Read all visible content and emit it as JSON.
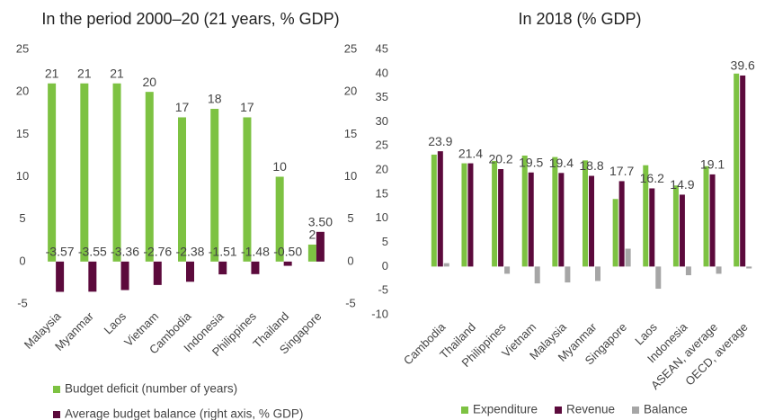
{
  "chart_data": [
    {
      "type": "bar",
      "title": "In the period 2000–20 (21 years, % GDP)",
      "categories": [
        "Malaysia",
        "Myanmar",
        "Laos",
        "Vietnam",
        "Cambodia",
        "Indonesia",
        "Philippines",
        "Thailand",
        "Singapore"
      ],
      "series": [
        {
          "name": "Budget deficit (number of years)",
          "color": "#7dc242",
          "values": [
            21,
            21,
            21,
            20,
            17,
            18,
            17,
            10,
            2
          ]
        },
        {
          "name": "Average budget balance (right axis, % GDP)",
          "color": "#5c0a3c",
          "axis": "y2",
          "values": [
            -3.57,
            -3.55,
            -3.36,
            -2.76,
            -2.38,
            -1.51,
            -1.48,
            -0.5,
            3.5
          ],
          "value_labels": [
            "-3.57",
            "-3.55",
            "-3.36",
            "-2.76",
            "-2.38",
            "-1.51",
            "-1.48",
            "-0.50",
            "3.50"
          ]
        }
      ],
      "ylim": [
        -5,
        25
      ],
      "yticks": [
        -5,
        0,
        5,
        10,
        15,
        20,
        25
      ],
      "y2lim": [
        -5,
        25
      ],
      "y2ticks": [
        -5,
        0,
        5,
        10,
        15,
        20,
        25
      ],
      "legend": "bottom-vertical"
    },
    {
      "type": "bar",
      "title": "In 2018 (% GDP)",
      "categories": [
        "Cambodia",
        "Thailand",
        "Philippines",
        "Vietnam",
        "Malaysia",
        "Myanmar",
        "Singapore",
        "Laos",
        "Indonesia",
        "ASEAN, average",
        "OECD, average"
      ],
      "series": [
        {
          "name": "Expenditure",
          "color": "#7dc242",
          "values": [
            23.2,
            21.4,
            21.9,
            23,
            22.7,
            22,
            14,
            21,
            16.8,
            20.8,
            40
          ]
        },
        {
          "name": "Revenue",
          "color": "#5c0a3c",
          "values": [
            23.9,
            21.4,
            20.2,
            19.5,
            19.4,
            18.8,
            17.7,
            16.2,
            14.9,
            19.1,
            39.6
          ],
          "labeled": true
        },
        {
          "name": "Balance",
          "color": "#a6a6a6",
          "values": [
            0.7,
            0,
            -1.5,
            -3.5,
            -3.3,
            -3,
            3.7,
            -4.6,
            -1.8,
            -1.5,
            -0.4
          ]
        }
      ],
      "ylim": [
        -10,
        45
      ],
      "yticks": [
        -10,
        -5,
        0,
        5,
        10,
        15,
        20,
        25,
        30,
        35,
        40,
        45
      ],
      "legend": "bottom-horizontal"
    }
  ]
}
